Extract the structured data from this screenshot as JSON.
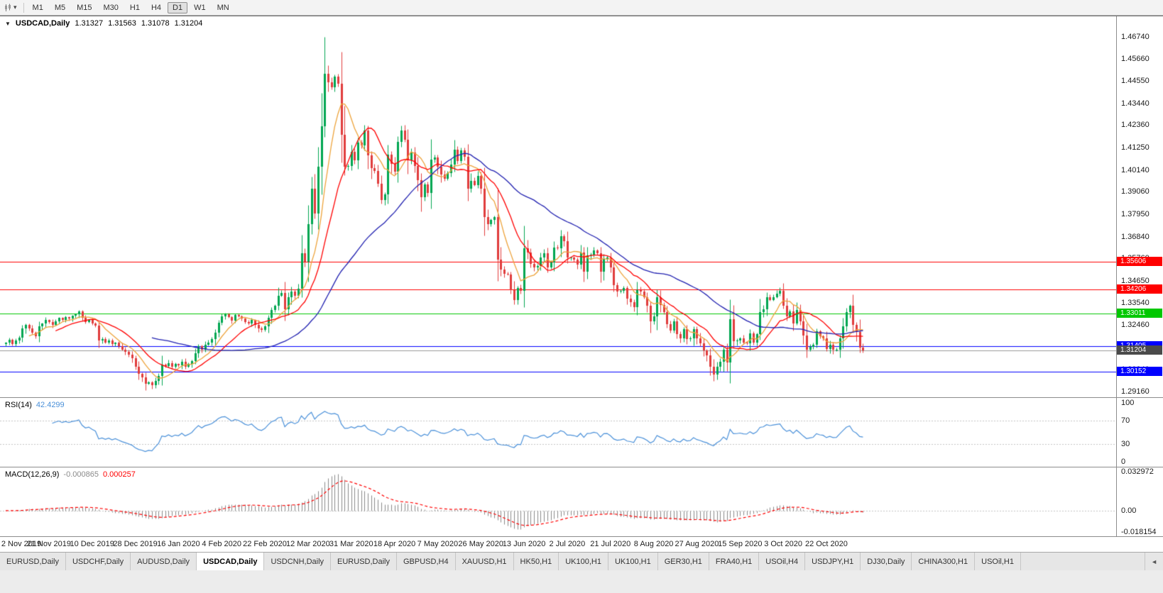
{
  "toolbar": {
    "timeframes": [
      "M1",
      "M5",
      "M15",
      "M30",
      "H1",
      "H4",
      "D1",
      "W1",
      "MN"
    ],
    "active_timeframe": "D1"
  },
  "chart_header": {
    "collapse_icon": "▼",
    "symbol": "USDCAD,Daily",
    "open": "1.31327",
    "high": "1.31563",
    "low": "1.31078",
    "close": "1.31204"
  },
  "rsi_label": {
    "name": "RSI(14)",
    "value": "42.4299"
  },
  "macd_label": {
    "name": "MACD(12,26,9)",
    "value1": "-0.000865",
    "value2": "0.000257"
  },
  "tabs": {
    "items": [
      "EURUSD,Daily",
      "USDCHF,Daily",
      "AUDUSD,Daily",
      "USDCAD,Daily",
      "USDCNH,Daily",
      "EURUSD,Daily",
      "GBPUSD,H4",
      "XAUUSD,H1",
      "HK50,H1",
      "UK100,H1",
      "UK100,H1",
      "GER30,H1",
      "FRA40,H1",
      "USOil,H4",
      "USDJPY,H1",
      "DJ30,Daily",
      "CHINA300,H1",
      "USOil,H1"
    ],
    "active_index": 3,
    "scroll_left_icon": "◄"
  },
  "chart_data": {
    "type": "candlestick",
    "symbol": "USDCAD",
    "timeframe": "Daily",
    "ohlc_current": {
      "open": 1.31327,
      "high": 1.31563,
      "low": 1.31078,
      "close": 1.31204
    },
    "first_open": 1.315,
    "extreme_high": 1.4674,
    "extreme_low": 1.2929,
    "closes": [
      1.316,
      1.3172,
      1.315,
      1.3168,
      1.3182,
      1.3228,
      1.3245,
      1.323,
      1.3208,
      1.319,
      1.3238,
      1.3252,
      1.327,
      1.3262,
      1.3248,
      1.3265,
      1.328,
      1.327,
      1.3285,
      1.3278,
      1.3292,
      1.3298,
      1.3312,
      1.328,
      1.3262,
      1.327,
      1.3255,
      1.3242,
      1.3168,
      1.3175,
      1.316,
      1.3168,
      1.315,
      1.3158,
      1.3142,
      1.3125,
      1.3112,
      1.3098,
      1.308,
      1.304,
      1.3005,
      1.2988,
      1.2955,
      1.2962,
      1.2948,
      1.297,
      1.2992,
      1.305,
      1.3042,
      1.3058,
      1.3038,
      1.3052,
      1.3045,
      1.3065,
      1.304,
      1.3052,
      1.3068,
      1.3105,
      1.314,
      1.3122,
      1.3148,
      1.316,
      1.3175,
      1.3208,
      1.3258,
      1.329,
      1.33,
      1.3285,
      1.3268,
      1.3295,
      1.329,
      1.3278,
      1.3262,
      1.3255,
      1.327,
      1.3248,
      1.3228,
      1.3222,
      1.324,
      1.328,
      1.3322,
      1.334,
      1.3392,
      1.3405,
      1.3324,
      1.3382,
      1.341,
      1.3392,
      1.3425,
      1.3601,
      1.356,
      1.3745,
      1.3923,
      1.38,
      1.403,
      1.423,
      1.449,
      1.445,
      1.4425,
      1.4475,
      1.444,
      1.419,
      1.403,
      1.4035,
      1.4105,
      1.4062,
      1.415,
      1.4135,
      1.421,
      1.4085,
      1.4025,
      1.4008,
      1.3945,
      1.3865,
      1.3895,
      1.409,
      1.4045,
      1.4005,
      1.4152,
      1.421,
      1.4165,
      1.4062,
      1.41,
      1.4035,
      1.3962,
      1.388,
      1.3942,
      1.39,
      1.4066,
      1.4075,
      1.403,
      1.399,
      1.397,
      1.4,
      1.404,
      1.4115,
      1.406,
      1.411,
      1.408,
      1.392,
      1.396,
      1.394,
      1.3985,
      1.392,
      1.378,
      1.3745,
      1.3765,
      1.378,
      1.357,
      1.352,
      1.35,
      1.3495,
      1.342,
      1.337,
      1.343,
      1.3415,
      1.3625,
      1.3605,
      1.355,
      1.353,
      1.354,
      1.358,
      1.36,
      1.353,
      1.3555,
      1.363,
      1.3625,
      1.3685,
      1.366,
      1.358,
      1.358,
      1.357,
      1.3545,
      1.3605,
      1.351,
      1.359,
      1.3595,
      1.3615,
      1.36,
      1.351,
      1.3575,
      1.358,
      1.353,
      1.3445,
      1.341,
      1.3415,
      1.343,
      1.3375,
      1.336,
      1.3335,
      1.342,
      1.341,
      1.3385,
      1.334,
      1.3265,
      1.329,
      1.3385,
      1.3345,
      1.331,
      1.325,
      1.322,
      1.3265,
      1.32,
      1.318,
      1.3225,
      1.3175,
      1.318,
      1.3225,
      1.318,
      1.3155,
      1.312,
      1.3095,
      1.304,
      1.3,
      1.304,
      1.3065,
      1.3125,
      1.306,
      1.3275,
      1.3165,
      1.3168,
      1.318,
      1.316,
      1.3155,
      1.3205,
      1.316,
      1.32,
      1.331,
      1.3325,
      1.3385,
      1.337,
      1.3385,
      1.34,
      1.3415,
      1.334,
      1.329,
      1.3315,
      1.3255,
      1.332,
      1.3265,
      1.3195,
      1.3125,
      1.3138,
      1.3148,
      1.3215,
      1.319,
      1.318,
      1.3128,
      1.3148,
      1.3122,
      1.3125,
      1.318,
      1.324,
      1.331,
      1.334,
      1.3248,
      1.321,
      1.3133,
      1.31204
    ],
    "x_labels": [
      {
        "t": "2 Nov 2019",
        "i": 0
      },
      {
        "t": "21 Nov 2019",
        "i": 13
      },
      {
        "t": "10 Dec 2019",
        "i": 26
      },
      {
        "t": "28 Dec 2019",
        "i": 39
      },
      {
        "t": "16 Jan 2020",
        "i": 52
      },
      {
        "t": "4 Feb 2020",
        "i": 65
      },
      {
        "t": "22 Feb 2020",
        "i": 78
      },
      {
        "t": "12 Mar 2020",
        "i": 91
      },
      {
        "t": "31 Mar 2020",
        "i": 104
      },
      {
        "t": "18 Apr 2020",
        "i": 117
      },
      {
        "t": "7 May 2020",
        "i": 130
      },
      {
        "t": "26 May 2020",
        "i": 143
      },
      {
        "t": "13 Jun 2020",
        "i": 156
      },
      {
        "t": "2 Jul 2020",
        "i": 169
      },
      {
        "t": "21 Jul 2020",
        "i": 182
      },
      {
        "t": "8 Aug 2020",
        "i": 195
      },
      {
        "t": "27 Aug 2020",
        "i": 208
      },
      {
        "t": "15 Sep 2020",
        "i": 221
      },
      {
        "t": "3 Oct 2020",
        "i": 234
      },
      {
        "t": "22 Oct 2020",
        "i": 247
      }
    ],
    "y_ticks": [
      "1.46740",
      "1.45660",
      "1.44550",
      "1.43440",
      "1.42360",
      "1.41250",
      "1.40140",
      "1.39060",
      "1.37950",
      "1.36840",
      "1.35760",
      "1.34650",
      "1.33540",
      "1.32460",
      "1.31350",
      "1.30240",
      "1.29160"
    ],
    "y_range": [
      1.2916,
      1.4674
    ],
    "levels": [
      {
        "value": 1.35606,
        "color": "#ff0000"
      },
      {
        "value": 1.34206,
        "color": "#ff0000"
      },
      {
        "value": 1.33011,
        "color": "#00c800"
      },
      {
        "value": 1.31405,
        "color": "#0000ff"
      },
      {
        "value": 1.30152,
        "color": "#0000ff"
      }
    ],
    "current_price": {
      "value": 1.31204,
      "line_color": "#9a9a9a",
      "badge_color": "#4a4a4a"
    },
    "moving_averages": [
      {
        "period": 8,
        "color": "#eda33b"
      },
      {
        "period": 16,
        "color": "#ff0000"
      },
      {
        "period": 45,
        "color": "#2121b0"
      }
    ],
    "candle_colors": {
      "up": "#00a651",
      "down": "#e03c3c"
    },
    "rsi": {
      "period": 14,
      "current": 42.4299,
      "color": "#4a90d9",
      "ticks": [
        "100",
        "70",
        "30",
        "0"
      ],
      "guides": [
        70,
        30
      ]
    },
    "macd": {
      "fast": 12,
      "slow": 26,
      "signal_period": 9,
      "histogram_value": -0.000865,
      "signal_value": 0.000257,
      "ticks": [
        "0.032972",
        "0.00",
        "-0.018154"
      ],
      "histogram_color": "#8a8a8a",
      "signal_color": "#ff0000"
    },
    "legend_position": "none",
    "grid": false
  }
}
